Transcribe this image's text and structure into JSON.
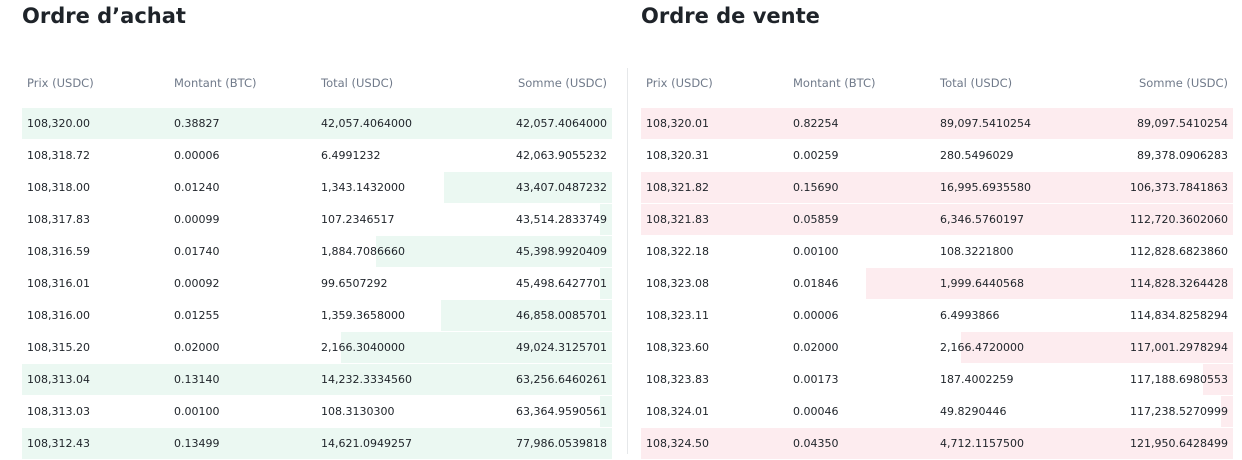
{
  "buy": {
    "title": "Ordre d’achat",
    "columns": [
      "Prix (USDC)",
      "Montant (BTC)",
      "Total (USDC)",
      "Somme (USDC)"
    ],
    "rows": [
      {
        "price": "108,320.00",
        "amount": "0.38827",
        "total": "42,057.4064000",
        "sum": "42,057.4064000",
        "depth": 1.0
      },
      {
        "price": "108,318.72",
        "amount": "0.00006",
        "total": "6.4991232",
        "sum": "42,063.9055232",
        "depth": 0.0
      },
      {
        "price": "108,318.00",
        "amount": "0.01240",
        "total": "1,343.1432000",
        "sum": "43,407.0487232",
        "depth": 0.285
      },
      {
        "price": "108,317.83",
        "amount": "0.00099",
        "total": "107.2346517",
        "sum": "43,514.2833749",
        "depth": 0.02
      },
      {
        "price": "108,316.59",
        "amount": "0.01740",
        "total": "1,884.7086660",
        "sum": "45,398.9920409",
        "depth": 0.4
      },
      {
        "price": "108,316.01",
        "amount": "0.00092",
        "total": "99.6507292",
        "sum": "45,498.6427701",
        "depth": 0.02
      },
      {
        "price": "108,316.00",
        "amount": "0.01255",
        "total": "1,359.3658000",
        "sum": "46,858.0085701",
        "depth": 0.29
      },
      {
        "price": "108,315.20",
        "amount": "0.02000",
        "total": "2,166.3040000",
        "sum": "49,024.3125701",
        "depth": 0.46
      },
      {
        "price": "108,313.04",
        "amount": "0.13140",
        "total": "14,232.3334560",
        "sum": "63,256.6460261",
        "depth": 1.0
      },
      {
        "price": "108,313.03",
        "amount": "0.00100",
        "total": "108.3130300",
        "sum": "63,364.9590561",
        "depth": 0.02
      },
      {
        "price": "108,312.43",
        "amount": "0.13499",
        "total": "14,621.0949257",
        "sum": "77,986.0539818",
        "depth": 1.0
      }
    ]
  },
  "sell": {
    "title": "Ordre de vente",
    "columns": [
      "Prix (USDC)",
      "Montant (BTC)",
      "Total (USDC)",
      "Somme (USDC)"
    ],
    "rows": [
      {
        "price": "108,320.01",
        "amount": "0.82254",
        "total": "89,097.5410254",
        "sum": "89,097.5410254",
        "depth": 1.0
      },
      {
        "price": "108,320.31",
        "amount": "0.00259",
        "total": "280.5496029",
        "sum": "89,378.0906283",
        "depth": 0.0
      },
      {
        "price": "108,321.82",
        "amount": "0.15690",
        "total": "16,995.6935580",
        "sum": "106,373.7841863",
        "depth": 1.0
      },
      {
        "price": "108,321.83",
        "amount": "0.05859",
        "total": "6,346.5760197",
        "sum": "112,720.3602060",
        "depth": 1.0
      },
      {
        "price": "108,322.18",
        "amount": "0.00100",
        "total": "108.3221800",
        "sum": "112,828.6823860",
        "depth": 0.0
      },
      {
        "price": "108,323.08",
        "amount": "0.01846",
        "total": "1,999.6440568",
        "sum": "114,828.3264428",
        "depth": 0.62
      },
      {
        "price": "108,323.11",
        "amount": "0.00006",
        "total": "6.4993866",
        "sum": "114,834.8258294",
        "depth": 0.0
      },
      {
        "price": "108,323.60",
        "amount": "0.02000",
        "total": "2,166.4720000",
        "sum": "117,001.2978294",
        "depth": 0.46
      },
      {
        "price": "108,323.83",
        "amount": "0.00173",
        "total": "187.4002259",
        "sum": "117,188.6980553",
        "depth": 0.05
      },
      {
        "price": "108,324.01",
        "amount": "0.00046",
        "total": "49.8290446",
        "sum": "117,238.5270999",
        "depth": 0.02
      },
      {
        "price": "108,324.50",
        "amount": "0.04350",
        "total": "4,712.1157500",
        "sum": "121,950.6428499",
        "depth": 1.0
      }
    ]
  },
  "colors": {
    "buy_depth": "#ebf8f2",
    "sell_depth": "#fdecef",
    "header_text": "#707a8a",
    "text": "#1e2329"
  }
}
